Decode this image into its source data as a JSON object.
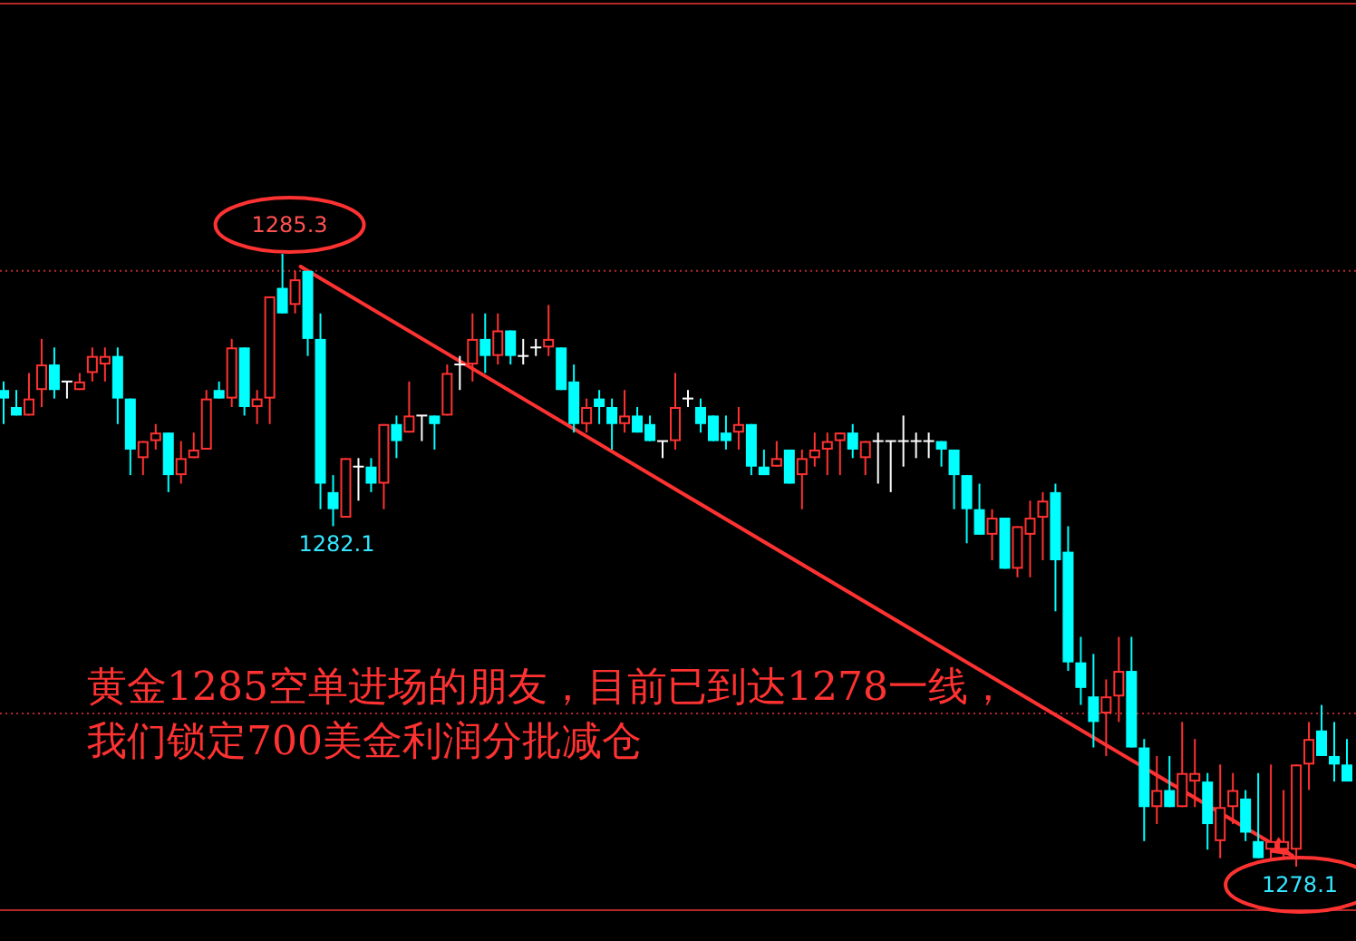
{
  "chart_data": {
    "type": "candlestick",
    "categories": [
      null,
      null,
      null,
      null,
      null,
      null,
      null,
      null,
      null,
      null,
      null,
      null,
      null,
      null,
      null,
      null,
      null,
      null,
      null,
      null,
      null,
      null,
      null,
      null,
      null,
      null,
      null,
      null,
      null,
      null,
      null,
      null,
      null,
      null,
      null,
      null,
      null,
      null,
      null,
      null,
      null,
      null,
      null,
      null,
      null,
      null,
      null,
      null,
      null,
      null,
      null,
      null,
      null,
      null,
      null,
      null,
      null,
      null,
      null,
      null,
      null,
      null,
      null,
      null,
      null,
      null,
      null,
      null,
      null,
      null,
      null,
      null,
      null,
      null,
      null,
      null,
      null,
      null,
      null,
      null,
      null,
      null,
      null,
      null,
      null,
      null,
      null,
      null,
      null,
      null,
      null,
      null,
      null,
      null,
      null,
      null,
      null,
      null,
      null,
      null,
      null,
      null,
      null,
      null,
      null,
      null,
      null
    ],
    "ohlc": [
      [
        1283.7,
        1283.8,
        1283.3,
        1283.6
      ],
      [
        1283.5,
        1283.7,
        1283.4,
        1283.4
      ],
      [
        1283.4,
        1283.9,
        1283.4,
        1283.6
      ],
      [
        1283.7,
        1284.3,
        1283.5,
        1284.0
      ],
      [
        1284.0,
        1284.2,
        1283.6,
        1283.7
      ],
      [
        1283.8,
        1283.8,
        1283.6,
        1283.8
      ],
      [
        1283.7,
        1283.9,
        1283.7,
        1283.8
      ],
      [
        1283.9,
        1284.2,
        1283.8,
        1284.1
      ],
      [
        1284.0,
        1284.2,
        1283.8,
        1284.1
      ],
      [
        1284.1,
        1284.2,
        1283.3,
        1283.6
      ],
      [
        1283.6,
        1283.6,
        1282.7,
        1283.0
      ],
      [
        1282.9,
        1283.1,
        1282.7,
        1283.1
      ],
      [
        1283.1,
        1283.3,
        1283.0,
        1283.2
      ],
      [
        1283.2,
        1283.2,
        1282.5,
        1282.7
      ],
      [
        1282.7,
        1283.1,
        1282.6,
        1282.9
      ],
      [
        1282.9,
        1283.2,
        1282.9,
        1283.0
      ],
      [
        1283.0,
        1283.7,
        1283.0,
        1283.6
      ],
      [
        1283.7,
        1283.8,
        1283.6,
        1283.6
      ],
      [
        1283.6,
        1284.3,
        1283.5,
        1284.2
      ],
      [
        1284.2,
        1284.2,
        1283.4,
        1283.5
      ],
      [
        1283.5,
        1283.7,
        1283.3,
        1283.6
      ],
      [
        1283.6,
        1284.8,
        1283.3,
        1284.8
      ],
      [
        1284.9,
        1285.3,
        1284.6,
        1284.6
      ],
      [
        1284.7,
        1285.1,
        1284.6,
        1285.0
      ],
      [
        1285.1,
        1285.1,
        1284.1,
        1284.3
      ],
      [
        1284.3,
        1284.6,
        1282.3,
        1282.6
      ],
      [
        1282.5,
        1282.7,
        1282.1,
        1282.3
      ],
      [
        1282.2,
        1282.9,
        1282.2,
        1282.9
      ],
      [
        1282.8,
        1282.9,
        1282.4,
        1282.8
      ],
      [
        1282.8,
        1282.9,
        1282.5,
        1282.6
      ],
      [
        1282.6,
        1283.3,
        1282.3,
        1283.3
      ],
      [
        1283.3,
        1283.4,
        1282.9,
        1283.1
      ],
      [
        1283.2,
        1283.8,
        1283.2,
        1283.4
      ],
      [
        1283.4,
        1283.4,
        1283.1,
        1283.4
      ],
      [
        1283.4,
        1283.4,
        1283.0,
        1283.3
      ],
      [
        1283.4,
        1284.0,
        1283.4,
        1283.9
      ],
      [
        1284.0,
        1284.1,
        1283.7,
        1284.0
      ],
      [
        1284.0,
        1284.6,
        1283.8,
        1284.3
      ],
      [
        1284.3,
        1284.6,
        1283.9,
        1284.1
      ],
      [
        1284.1,
        1284.6,
        1284.0,
        1284.4
      ],
      [
        1284.4,
        1284.4,
        1284.0,
        1284.1
      ],
      [
        1284.1,
        1284.3,
        1284.0,
        1284.1
      ],
      [
        1284.2,
        1284.3,
        1284.1,
        1284.2
      ],
      [
        1284.2,
        1284.7,
        1284.1,
        1284.3
      ],
      [
        1284.2,
        1284.2,
        1283.7,
        1283.7
      ],
      [
        1283.8,
        1284.0,
        1283.2,
        1283.3
      ],
      [
        1283.3,
        1283.6,
        1283.2,
        1283.5
      ],
      [
        1283.6,
        1283.7,
        1283.3,
        1283.5
      ],
      [
        1283.5,
        1283.6,
        1283.0,
        1283.3
      ],
      [
        1283.3,
        1283.7,
        1283.2,
        1283.4
      ],
      [
        1283.4,
        1283.5,
        1283.2,
        1283.2
      ],
      [
        1283.3,
        1283.4,
        1283.1,
        1283.1
      ],
      [
        1283.1,
        1283.1,
        1282.9,
        1283.1
      ],
      [
        1283.1,
        1283.9,
        1283.0,
        1283.5
      ],
      [
        1283.6,
        1283.7,
        1283.5,
        1283.6
      ],
      [
        1283.5,
        1283.6,
        1283.2,
        1283.3
      ],
      [
        1283.4,
        1283.4,
        1283.1,
        1283.1
      ],
      [
        1283.2,
        1283.4,
        1283.0,
        1283.1
      ],
      [
        1283.2,
        1283.5,
        1283.0,
        1283.3
      ],
      [
        1283.3,
        1283.3,
        1282.7,
        1282.8
      ],
      [
        1282.8,
        1283.0,
        1282.7,
        1282.7
      ],
      [
        1282.8,
        1283.1,
        1282.8,
        1282.9
      ],
      [
        1283.0,
        1283.0,
        1282.6,
        1282.6
      ],
      [
        1282.7,
        1283.0,
        1282.3,
        1282.9
      ],
      [
        1282.9,
        1283.2,
        1282.8,
        1283.0
      ],
      [
        1283.0,
        1283.2,
        1282.7,
        1283.1
      ],
      [
        1283.1,
        1283.2,
        1282.7,
        1283.2
      ],
      [
        1283.2,
        1283.3,
        1282.9,
        1283.0
      ],
      [
        1282.9,
        1283.1,
        1282.7,
        1283.1
      ],
      [
        1283.1,
        1283.2,
        1282.6,
        1283.1
      ],
      [
        1283.1,
        1283.1,
        1282.5,
        1283.1
      ],
      [
        1283.1,
        1283.4,
        1282.8,
        1283.1
      ],
      [
        1283.1,
        1283.2,
        1282.9,
        1283.1
      ],
      [
        1283.1,
        1283.2,
        1282.9,
        1283.1
      ],
      [
        1283.1,
        1283.1,
        1282.8,
        1283.0
      ],
      [
        1283.0,
        1283.0,
        1282.3,
        1282.7
      ],
      [
        1282.7,
        1282.7,
        1281.9,
        1282.3
      ],
      [
        1282.3,
        1282.6,
        1282.0,
        1282.0
      ],
      [
        1282.0,
        1282.3,
        1281.7,
        1282.2
      ],
      [
        1282.2,
        1282.2,
        1281.6,
        1281.6
      ],
      [
        1281.6,
        1282.1,
        1281.5,
        1282.1
      ],
      [
        1282.0,
        1282.4,
        1281.5,
        1282.2
      ],
      [
        1282.2,
        1282.5,
        1281.7,
        1282.4
      ],
      [
        1282.5,
        1282.6,
        1281.1,
        1281.7
      ],
      [
        1281.8,
        1282.1,
        1280.4,
        1280.5
      ],
      [
        1280.5,
        1280.8,
        1280.0,
        1280.2
      ],
      [
        1280.1,
        1280.6,
        1279.5,
        1279.8
      ],
      [
        1279.9,
        1280.3,
        1279.4,
        1280.1
      ],
      [
        1280.1,
        1280.8,
        1279.8,
        1280.4
      ],
      [
        1280.4,
        1280.8,
        1279.5,
        1279.5
      ],
      [
        1279.5,
        1279.6,
        1278.4,
        1278.8
      ],
      [
        1278.8,
        1279.4,
        1278.6,
        1279.0
      ],
      [
        1279.0,
        1279.4,
        1278.8,
        1278.8
      ],
      [
        1278.8,
        1279.8,
        1278.8,
        1279.2
      ],
      [
        1279.1,
        1279.6,
        1278.8,
        1279.2
      ],
      [
        1279.1,
        1279.2,
        1278.3,
        1278.6
      ],
      [
        1278.4,
        1279.3,
        1278.2,
        1278.8
      ],
      [
        1278.8,
        1279.2,
        1278.6,
        1279.0
      ],
      [
        1278.9,
        1279.0,
        1278.4,
        1278.5
      ],
      [
        1278.4,
        1279.2,
        1278.2,
        1278.2
      ],
      [
        1278.3,
        1279.3,
        1278.2,
        1278.4
      ],
      [
        1278.3,
        1279.0,
        1278.2,
        1278.4
      ],
      [
        1278.3,
        1279.3,
        1278.1,
        1279.3
      ],
      [
        1279.3,
        1279.8,
        1279.0,
        1279.6
      ],
      [
        1279.7,
        1280.0,
        1279.4,
        1279.4
      ],
      [
        1279.4,
        1279.8,
        1279.1,
        1279.3
      ],
      [
        1279.3,
        1279.6,
        1279.1,
        1279.1
      ]
    ],
    "colors": [
      "#00ffff",
      "#00ffff",
      "#ff3232",
      "#ff3232",
      "#00ffff",
      "#ffffff",
      "#ff3232",
      "#ff3232",
      "#ff3232",
      "#00ffff",
      "#00ffff",
      "#ff3232",
      "#ff3232",
      "#00ffff",
      "#ff3232",
      "#ff3232",
      "#ff3232",
      "#00ffff",
      "#ff3232",
      "#00ffff",
      "#ff3232",
      "#ff3232",
      "#00ffff",
      "#ff3232",
      "#00ffff",
      "#00ffff",
      "#00ffff",
      "#ff3232",
      "#ffffff",
      "#00ffff",
      "#ff3232",
      "#00ffff",
      "#ff3232",
      "#ffffff",
      "#00ffff",
      "#ff3232",
      "#ffffff",
      "#ff3232",
      "#00ffff",
      "#ff3232",
      "#00ffff",
      "#ffffff",
      "#ffffff",
      "#ff3232",
      "#00ffff",
      "#00ffff",
      "#ff3232",
      "#00ffff",
      "#00ffff",
      "#ff3232",
      "#00ffff",
      "#00ffff",
      "#ffffff",
      "#ff3232",
      "#ffffff",
      "#00ffff",
      "#00ffff",
      "#00ffff",
      "#ff3232",
      "#00ffff",
      "#00ffff",
      "#ff3232",
      "#00ffff",
      "#ff3232",
      "#ff3232",
      "#ff3232",
      "#ff3232",
      "#00ffff",
      "#ff3232",
      "#ffffff",
      "#ffffff",
      "#ffffff",
      "#ffffff",
      "#ffffff",
      "#00ffff",
      "#00ffff",
      "#00ffff",
      "#00ffff",
      "#ff3232",
      "#00ffff",
      "#ff3232",
      "#ff3232",
      "#ff3232",
      "#00ffff",
      "#00ffff",
      "#00ffff",
      "#00ffff",
      "#ff3232",
      "#ff3232",
      "#00ffff",
      "#00ffff",
      "#ff3232",
      "#00ffff",
      "#ff3232",
      "#ff3232",
      "#00ffff",
      "#ff3232",
      "#ff3232",
      "#00ffff",
      "#00ffff",
      "#ff3232",
      "#ff3232",
      "#ff3232",
      "#ff3232",
      "#00ffff",
      "#00ffff",
      "#00ffff"
    ],
    "ref_lines": [
      {
        "axis": "y",
        "value": 1285.1,
        "color": "#b42828",
        "line_style": "dotted"
      },
      {
        "axis": "y",
        "value": 1279.9,
        "color": "#b42828",
        "line_style": "dotted"
      }
    ],
    "annotations": [
      {
        "text": "1285.3",
        "y": 1285.3
      },
      {
        "text": "1282.1",
        "y": 1282.1
      },
      {
        "text": "1278.1",
        "y": 1278.1
      },
      "黄金1285空单进场的朋友，目前已到达1278一线，",
      "我们锁定700美金利润分批减仓"
    ]
  }
}
